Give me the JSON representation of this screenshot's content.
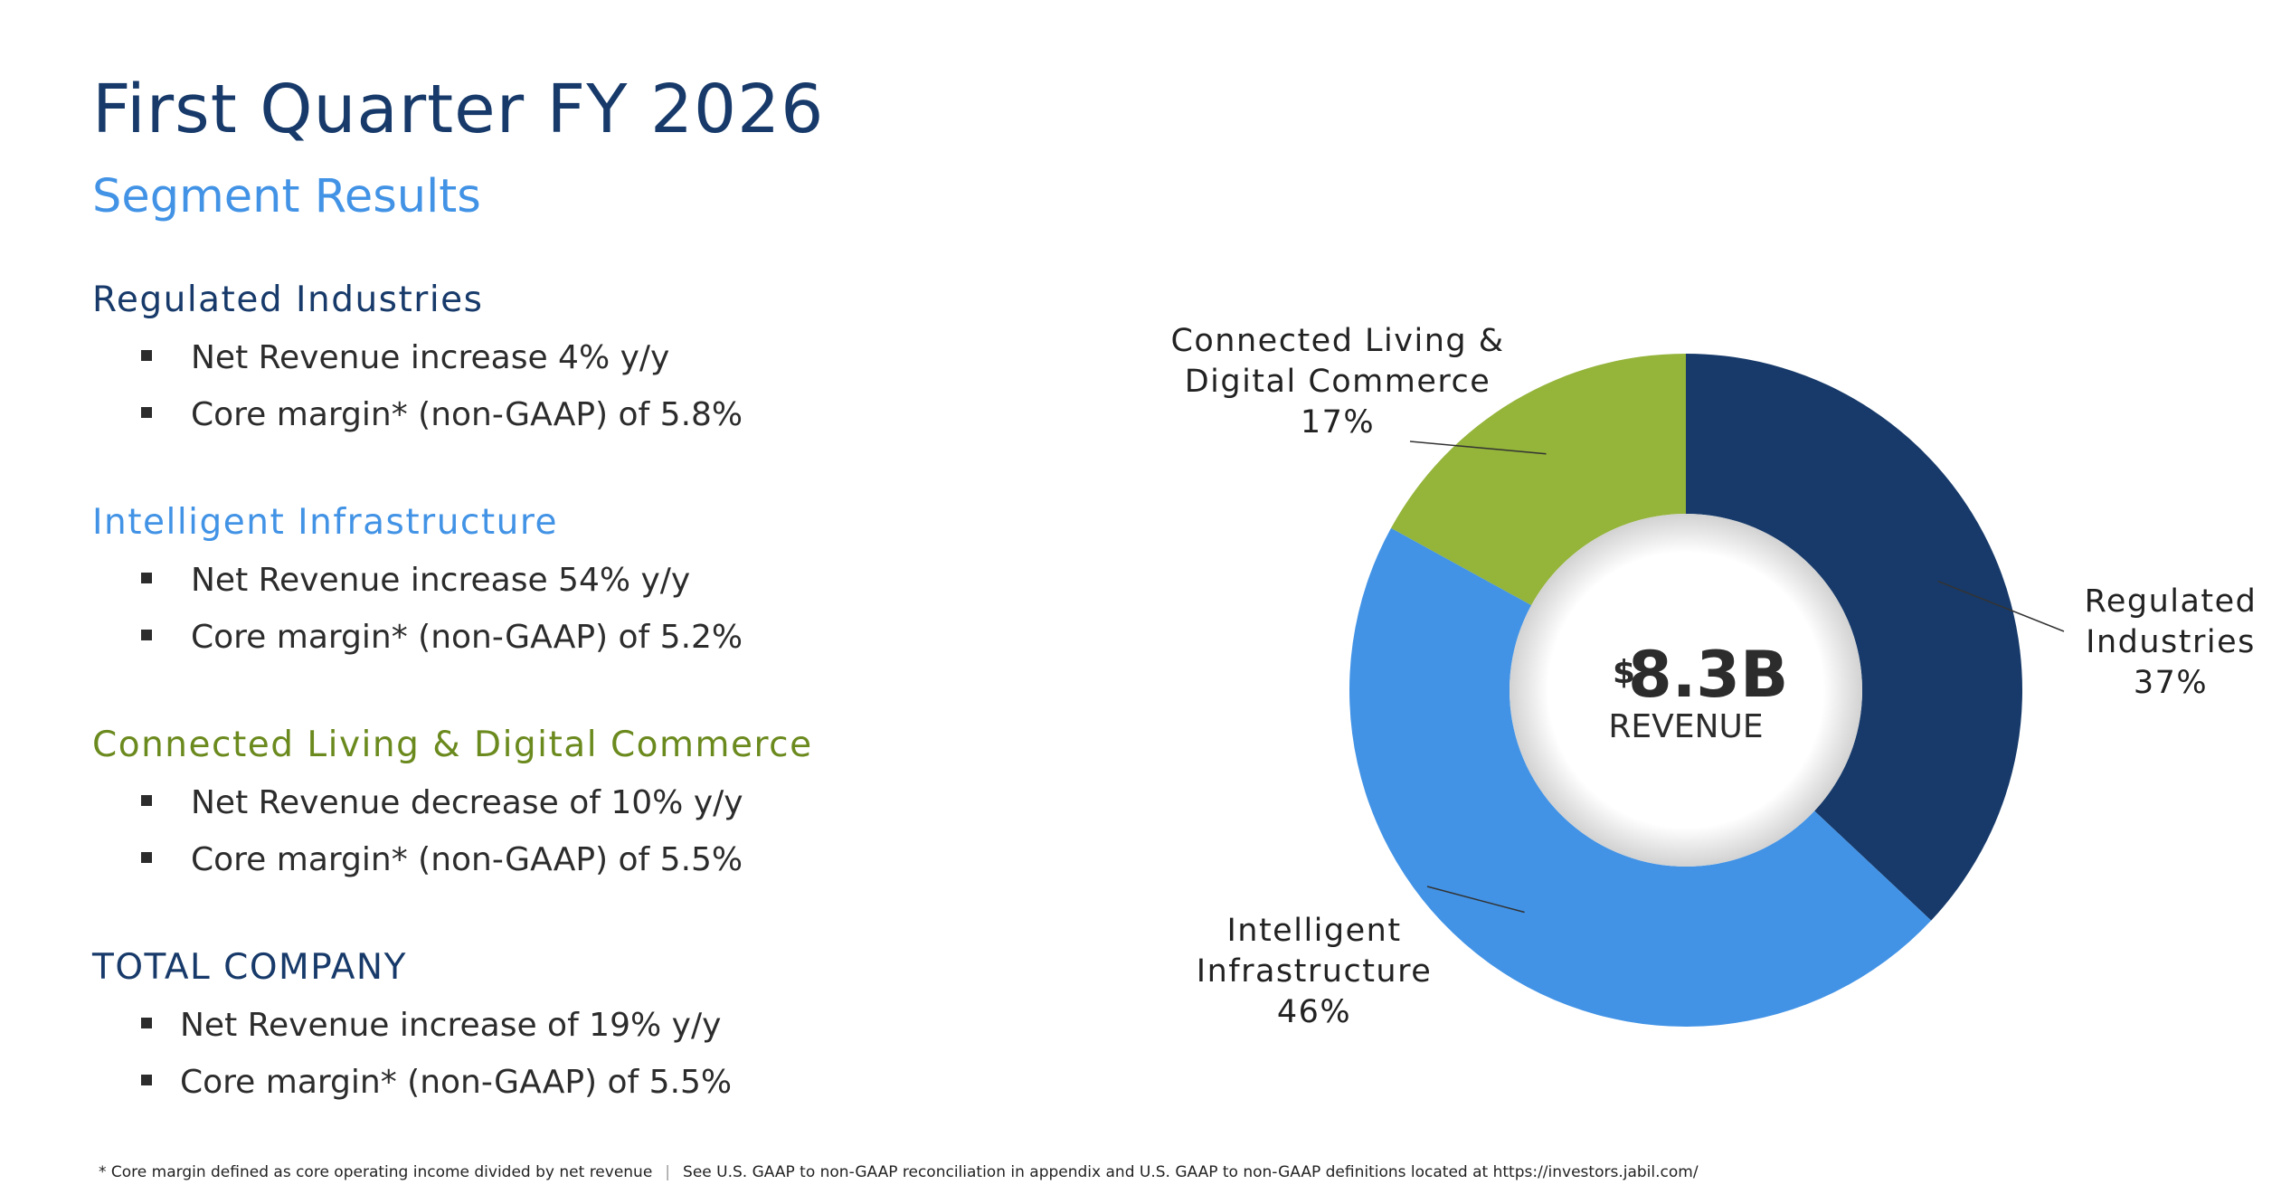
{
  "title": "First Quarter FY 2026",
  "subtitle": "Segment Results",
  "segments": [
    {
      "name": "Regulated Industries",
      "color": "#173a6a",
      "items": [
        "Net Revenue increase 4% y/y",
        "Core margin* (non-GAAP) of 5.8%"
      ]
    },
    {
      "name": "Intelligent Infrastructure",
      "color": "#4293e6",
      "items": [
        "Net Revenue increase 54% y/y",
        "Core margin* (non-GAAP) of 5.2%"
      ]
    },
    {
      "name": "Connected Living & Digital Commerce",
      "color": "#6b8a1e",
      "items": [
        "Net Revenue decrease of 10% y/y",
        "Core margin* (non-GAAP) of 5.5%"
      ]
    },
    {
      "name": "TOTAL COMPANY",
      "color": "#173a6a",
      "items": [
        "Net Revenue increase of 19% y/y",
        "Core margin* (non-GAAP) of 5.5%"
      ]
    }
  ],
  "footnote": {
    "left": "* Core margin defined as core operating income divided by net revenue",
    "separator": "|",
    "right": "See U.S. GAAP to non-GAAP reconciliation in appendix and U.S. GAAP to non-GAAP definitions located at https://investors.jabil.com/"
  },
  "chart_data": {
    "type": "pie",
    "donut": true,
    "center": {
      "currency": "$",
      "value": "8.3B",
      "label": "REVENUE"
    },
    "slices": [
      {
        "label_lines": [
          "Regulated",
          "Industries"
        ],
        "pct_label": "37%",
        "value": 37,
        "color": "#173a6a"
      },
      {
        "label_lines": [
          "Intelligent",
          "Infrastructure"
        ],
        "pct_label": "46%",
        "value": 46,
        "color": "#4293e6"
      },
      {
        "label_lines": [
          "Connected Living &",
          "Digital Commerce"
        ],
        "pct_label": "17%",
        "value": 17,
        "color": "#94b43a"
      }
    ]
  }
}
